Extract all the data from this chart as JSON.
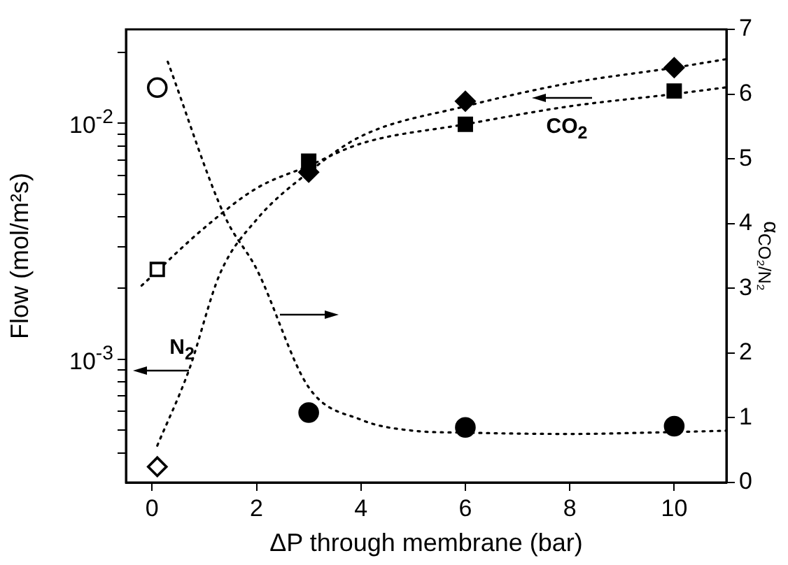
{
  "chart_data": {
    "type": "scatter",
    "xlabel": "ΔP through membrane (bar)",
    "ylabel": "Flow (mol/m²s)",
    "y2label": "α$_{CO₂/N₂}$",
    "xlim": [
      -0.5,
      11
    ],
    "xticks": [
      0,
      2,
      4,
      6,
      8,
      10
    ],
    "ylim": [
      0.00031,
      0.025
    ],
    "log": "y",
    "yticks": [
      {
        "value": 0.0004,
        "label": null
      },
      {
        "value": 0.0005,
        "label": null
      },
      {
        "value": 0.0006,
        "label": null
      },
      {
        "value": 0.0007,
        "label": null
      },
      {
        "value": 0.0008,
        "label": null
      },
      {
        "value": 0.0009,
        "label": null
      },
      {
        "value": 0.001,
        "label": "10$^{-3}$"
      },
      {
        "value": 0.002,
        "label": null
      },
      {
        "value": 0.003,
        "label": null
      },
      {
        "value": 0.004,
        "label": null
      },
      {
        "value": 0.005,
        "label": null
      },
      {
        "value": 0.006,
        "label": null
      },
      {
        "value": 0.007,
        "label": null
      },
      {
        "value": 0.008,
        "label": null
      },
      {
        "value": 0.009,
        "label": null
      },
      {
        "value": 0.01,
        "label": "10$^{-2}$"
      },
      {
        "value": 0.02,
        "label": null
      }
    ],
    "y2lim": [
      0,
      7
    ],
    "y2ticks": [
      0,
      1,
      2,
      3,
      4,
      5,
      6,
      7
    ],
    "grid": false,
    "legend": false,
    "series": [
      {
        "marker": "square",
        "color": "#000000",
        "colors": [
          "#ffffff",
          "#000000",
          "#000000",
          "#000000"
        ],
        "x": [
          0.1,
          3,
          6,
          10
        ],
        "values": [
          0.0024,
          0.0069,
          0.0099,
          0.0137
        ]
      },
      {
        "marker": "diamond",
        "color": "#000000",
        "colors": [
          "#ffffff",
          "#000000",
          "#000000",
          "#000000"
        ],
        "x": [
          0.1,
          3,
          6,
          10
        ],
        "values": [
          0.00035,
          0.0062,
          0.0124,
          0.0172
        ]
      },
      {
        "marker": "circle",
        "axis": "y2",
        "color": "#000000",
        "colors": [
          "#ffffff",
          "#000000",
          "#000000",
          "#000000"
        ],
        "x": [
          0.1,
          3,
          6,
          10
        ],
        "values": [
          6.1,
          1.08,
          0.85,
          0.87
        ]
      },
      {
        "type": "line",
        "marker": "none",
        "line_style": "dotted",
        "color": "#000000",
        "x": [
          -0.2,
          1,
          2,
          3,
          4,
          6,
          8,
          10,
          11
        ],
        "values": [
          0.00205,
          0.0036,
          0.0053,
          0.0066,
          0.0082,
          0.0099,
          0.0118,
          0.0133,
          0.0142
        ]
      },
      {
        "type": "line",
        "marker": "none",
        "line_style": "dotted",
        "color": "#000000",
        "x": [
          0.1,
          0.7,
          1.3,
          2,
          3,
          4,
          6,
          8,
          10,
          11
        ],
        "values": [
          0.00043,
          0.00089,
          0.0023,
          0.0039,
          0.0062,
          0.0088,
          0.0118,
          0.0148,
          0.0172,
          0.0187
        ]
      },
      {
        "type": "line",
        "marker": "none",
        "line_style": "dotted",
        "axis": "y2",
        "color": "#000000",
        "x": [
          0.3,
          1.4,
          2,
          3,
          4,
          5,
          6,
          8,
          10,
          11
        ],
        "values": [
          6.5,
          4.1,
          3.3,
          1.47,
          0.97,
          0.8,
          0.77,
          0.75,
          0.78,
          0.8
        ]
      }
    ],
    "annotations": [
      "N$_{2}$",
      "CO$_{2}$"
    ]
  }
}
